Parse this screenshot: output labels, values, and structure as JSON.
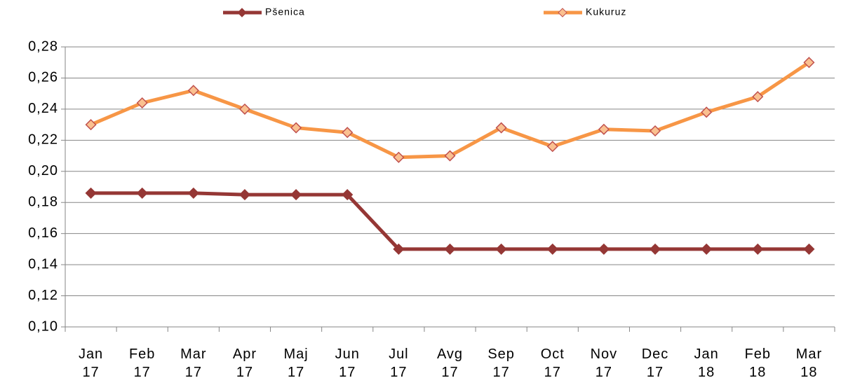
{
  "chart_data": {
    "type": "line",
    "categories": [
      "Jan 17",
      "Feb 17",
      "Mar 17",
      "Apr 17",
      "Maj 17",
      "Jun 17",
      "Jul 17",
      "Avg 17",
      "Sep 17",
      "Oct 17",
      "Nov 17",
      "Dec 17",
      "Jan 18",
      "Feb 18",
      "Mar 18"
    ],
    "series": [
      {
        "name": "Pšenica",
        "color": "#953735",
        "marker_fill": "#953735",
        "marker_stroke": "#953735",
        "values": [
          0.186,
          0.186,
          0.186,
          0.185,
          0.185,
          0.185,
          0.15,
          0.15,
          0.15,
          0.15,
          0.15,
          0.15,
          0.15,
          0.15,
          0.15
        ]
      },
      {
        "name": "Kukuruz",
        "color": "#f79646",
        "marker_fill": "#fac090",
        "marker_stroke": "#c0504d",
        "values": [
          0.23,
          0.244,
          0.252,
          0.24,
          0.228,
          0.225,
          0.209,
          0.21,
          0.228,
          0.216,
          0.227,
          0.226,
          0.238,
          0.248,
          0.27
        ]
      }
    ],
    "ylim": [
      0.1,
      0.28
    ],
    "yticks": [
      {
        "value": 0.1,
        "label": "0,10"
      },
      {
        "value": 0.12,
        "label": "0,12"
      },
      {
        "value": 0.14,
        "label": "0,14"
      },
      {
        "value": 0.16,
        "label": "0,16"
      },
      {
        "value": 0.18,
        "label": "0,18"
      },
      {
        "value": 0.2,
        "label": "0,20"
      },
      {
        "value": 0.22,
        "label": "0,22"
      },
      {
        "value": 0.24,
        "label": "0,24"
      },
      {
        "value": 0.26,
        "label": "0,26"
      },
      {
        "value": 0.28,
        "label": "0,28"
      }
    ],
    "grid": true,
    "legend": "top"
  }
}
